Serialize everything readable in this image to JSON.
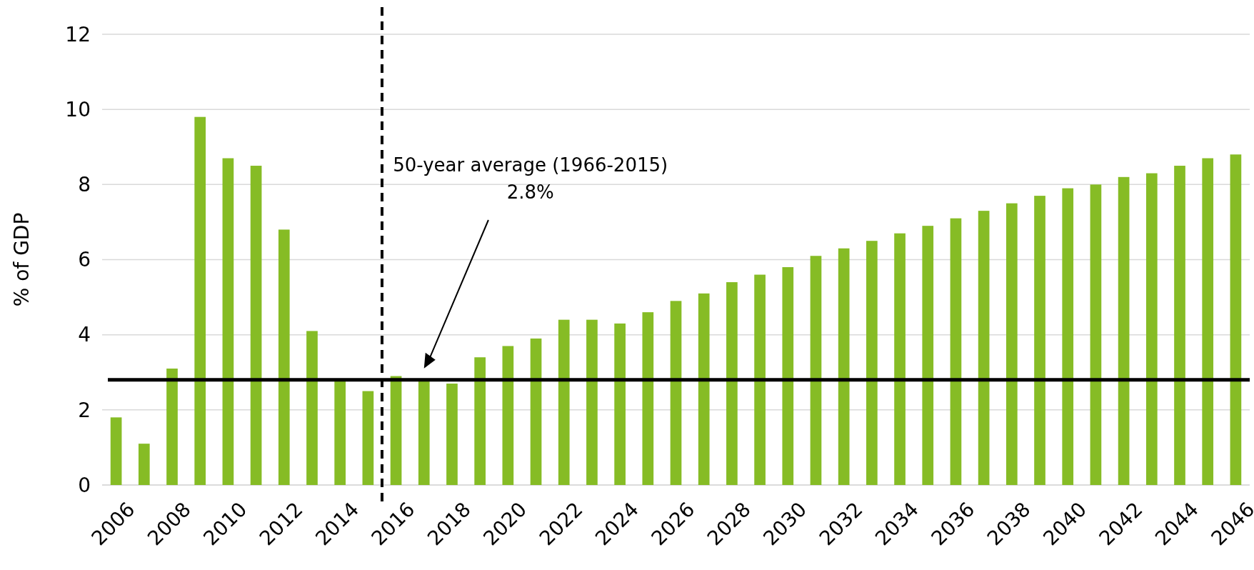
{
  "chart_data": {
    "type": "bar",
    "ylabel": "% of GDP",
    "x": [
      2006,
      2007,
      2008,
      2009,
      2010,
      2011,
      2012,
      2013,
      2014,
      2015,
      2016,
      2017,
      2018,
      2019,
      2020,
      2021,
      2022,
      2023,
      2024,
      2025,
      2026,
      2027,
      2028,
      2029,
      2030,
      2031,
      2032,
      2033,
      2034,
      2035,
      2036,
      2037,
      2038,
      2039,
      2040,
      2041,
      2042,
      2043,
      2044,
      2045,
      2046
    ],
    "values": [
      1.8,
      1.1,
      3.1,
      9.8,
      8.7,
      8.5,
      6.8,
      4.1,
      2.8,
      2.5,
      2.9,
      2.8,
      2.7,
      3.4,
      3.7,
      3.9,
      4.4,
      4.4,
      4.3,
      4.6,
      4.9,
      5.1,
      5.4,
      5.6,
      5.8,
      6.1,
      6.3,
      6.5,
      6.7,
      6.9,
      7.1,
      7.3,
      7.5,
      7.7,
      7.9,
      8.0,
      8.2,
      8.3,
      8.5,
      8.7,
      8.8
    ],
    "color": "#86bc25",
    "xlim": [
      2005.5,
      2046.5
    ],
    "xticks": [
      2006,
      2008,
      2010,
      2012,
      2014,
      2016,
      2018,
      2020,
      2022,
      2024,
      2026,
      2028,
      2030,
      2032,
      2034,
      2036,
      2038,
      2040,
      2042,
      2044,
      2046
    ],
    "ylim": [
      0,
      12
    ],
    "yticks": [
      0,
      2,
      4,
      6,
      8,
      10,
      12
    ],
    "grid": "y",
    "ref_lines": [
      {
        "axis": "y",
        "value": 2.8,
        "label": "50-year average (1966-2015)\n2.8%",
        "color": "#000000",
        "line_style": "solid"
      },
      {
        "axis": "x",
        "value": 2015.5,
        "color": "#000000",
        "line_style": "dashed"
      }
    ]
  }
}
